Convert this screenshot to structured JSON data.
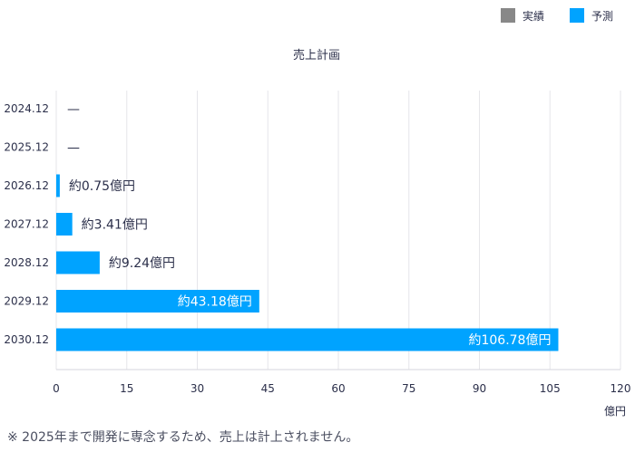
{
  "chart_data": {
    "type": "bar",
    "orientation": "horizontal",
    "title": "売上計画",
    "categories": [
      "2024.12",
      "2025.12",
      "2026.12",
      "2027.12",
      "2028.12",
      "2029.12",
      "2030.12"
    ],
    "series": [
      {
        "name": "実績",
        "color": "#888888",
        "values": [
          null,
          null,
          null,
          null,
          null,
          null,
          null
        ]
      },
      {
        "name": "予測",
        "color": "#00a3ff",
        "values": [
          null,
          null,
          0.75,
          3.41,
          9.24,
          43.18,
          106.78
        ]
      }
    ],
    "data_labels": [
      "—",
      "—",
      "約0.75億円",
      "約3.41億円",
      "約9.24億円",
      "約43.18億円",
      "約106.78億円"
    ],
    "xlim": [
      0,
      120
    ],
    "x_ticks": [
      "0",
      "15",
      "30",
      "45",
      "60",
      "75",
      "90",
      "105",
      "120"
    ],
    "x_unit": "億円",
    "grid": true,
    "legend_position": "top-right"
  },
  "footnote": "※ 2025年まで開発に専念するため、売上は計上されません。"
}
